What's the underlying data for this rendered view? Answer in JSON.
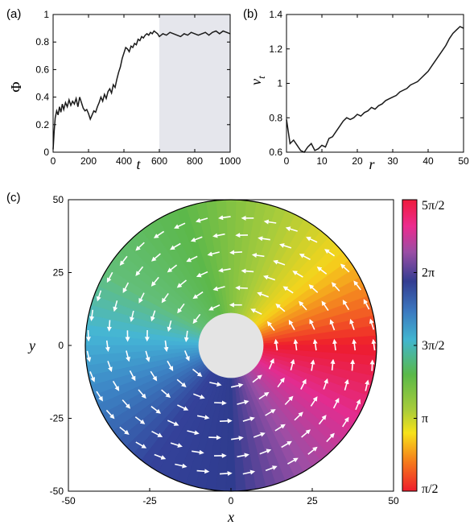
{
  "chart_data": [
    {
      "panel": "(a)",
      "type": "line",
      "xlabel": "t",
      "ylabel": "Φ",
      "xlim": [
        0,
        1000
      ],
      "ylim": [
        0,
        1
      ],
      "xticks": [
        "0",
        "200",
        "400",
        "600",
        "800",
        "1000"
      ],
      "yticks": [
        "0",
        "0.2",
        "0.4",
        "0.6",
        "0.8",
        "1"
      ],
      "shaded_region": [
        600,
        1000
      ],
      "series": [
        {
          "x": [
            0,
            6,
            12,
            20,
            28,
            36,
            44,
            52,
            60,
            70,
            80,
            90,
            100,
            110,
            120,
            130,
            140,
            150,
            160,
            170,
            180,
            190,
            200,
            210,
            220,
            230,
            240,
            250,
            260,
            270,
            280,
            290,
            300,
            310,
            320,
            330,
            340,
            350,
            360,
            370,
            380,
            390,
            400,
            410,
            420,
            430,
            440,
            450,
            460,
            470,
            480,
            490,
            500,
            510,
            520,
            530,
            540,
            550,
            560,
            570,
            580,
            590,
            600,
            620,
            640,
            660,
            680,
            700,
            720,
            740,
            760,
            780,
            800,
            820,
            840,
            860,
            880,
            900,
            920,
            940,
            960,
            980,
            1000
          ],
          "y": [
            0.02,
            0.15,
            0.25,
            0.3,
            0.27,
            0.33,
            0.29,
            0.35,
            0.31,
            0.36,
            0.33,
            0.38,
            0.34,
            0.37,
            0.35,
            0.39,
            0.33,
            0.4,
            0.36,
            0.32,
            0.3,
            0.31,
            0.28,
            0.24,
            0.27,
            0.3,
            0.29,
            0.33,
            0.36,
            0.4,
            0.37,
            0.42,
            0.39,
            0.44,
            0.46,
            0.43,
            0.49,
            0.47,
            0.53,
            0.58,
            0.62,
            0.68,
            0.72,
            0.76,
            0.75,
            0.73,
            0.77,
            0.76,
            0.79,
            0.78,
            0.82,
            0.81,
            0.84,
            0.83,
            0.85,
            0.86,
            0.85,
            0.87,
            0.86,
            0.88,
            0.87,
            0.86,
            0.84,
            0.86,
            0.85,
            0.87,
            0.86,
            0.85,
            0.84,
            0.86,
            0.85,
            0.87,
            0.86,
            0.85,
            0.86,
            0.87,
            0.85,
            0.87,
            0.88,
            0.86,
            0.88,
            0.87,
            0.86
          ]
        }
      ]
    },
    {
      "panel": "(b)",
      "type": "line",
      "xlabel": "r",
      "ylabel": "v",
      "ylabel_sub": "t",
      "xlim": [
        0,
        50
      ],
      "ylim": [
        0.6,
        1.4
      ],
      "xticks": [
        "0",
        "10",
        "20",
        "30",
        "40",
        "50"
      ],
      "yticks": [
        "0.6",
        "0.8",
        "1",
        "1.2",
        "1.4"
      ],
      "series": [
        {
          "x": [
            0,
            1,
            2,
            3,
            4,
            5,
            6,
            7,
            8,
            9,
            10,
            11,
            12,
            13,
            14,
            15,
            16,
            17,
            18,
            19,
            20,
            21,
            22,
            23,
            24,
            25,
            26,
            27,
            28,
            29,
            30,
            31,
            32,
            33,
            34,
            35,
            36,
            37,
            38,
            39,
            40,
            41,
            42,
            43,
            44,
            45,
            46,
            47,
            48,
            49,
            50
          ],
          "y": [
            0.79,
            0.65,
            0.67,
            0.64,
            0.61,
            0.6,
            0.63,
            0.65,
            0.61,
            0.62,
            0.64,
            0.63,
            0.68,
            0.69,
            0.72,
            0.75,
            0.78,
            0.8,
            0.79,
            0.8,
            0.82,
            0.81,
            0.83,
            0.84,
            0.86,
            0.85,
            0.87,
            0.88,
            0.9,
            0.91,
            0.92,
            0.93,
            0.95,
            0.96,
            0.97,
            0.99,
            1.0,
            1.01,
            1.03,
            1.05,
            1.07,
            1.1,
            1.13,
            1.16,
            1.19,
            1.22,
            1.26,
            1.29,
            1.31,
            1.33,
            1.32
          ]
        }
      ]
    },
    {
      "panel": "(c)",
      "type": "heatmap",
      "description_free": false,
      "xlabel": "x",
      "ylabel": "y",
      "xlim": [
        -50,
        50
      ],
      "ylim": [
        -50,
        50
      ],
      "xticks": [
        "-50",
        "-25",
        "0",
        "25",
        "50"
      ],
      "yticks": [
        "-50",
        "-25",
        "0",
        "25",
        "50"
      ],
      "inner_radius": 10,
      "outer_radius": 50,
      "colorbar_ticks": [
        "5π/2",
        "2π",
        "3π/2",
        "π",
        "π/2"
      ],
      "colorbar_range": [
        1.5708,
        7.854
      ]
    }
  ]
}
